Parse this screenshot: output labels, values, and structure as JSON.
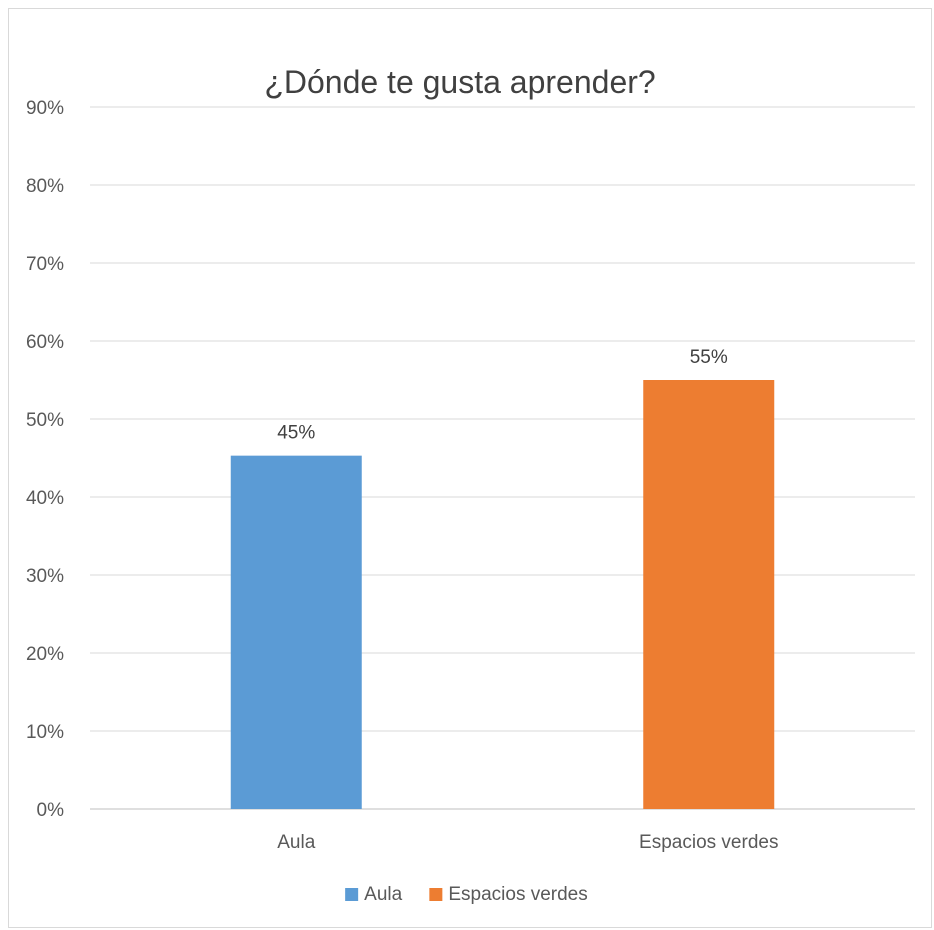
{
  "chart_data": {
    "type": "bar",
    "title": "¿Dónde te gusta aprender?",
    "categories": [
      "Aula",
      "Espacios verdes"
    ],
    "values": [
      45.3,
      55
    ],
    "data_labels": [
      "45%",
      "55%"
    ],
    "colors": [
      "#5b9bd5",
      "#ed7d31"
    ],
    "ylim": [
      0,
      90
    ],
    "y_ticks": [
      0,
      10,
      20,
      30,
      40,
      50,
      60,
      70,
      80,
      90
    ],
    "y_tick_labels": [
      "0%",
      "10%",
      "20%",
      "30%",
      "40%",
      "50%",
      "60%",
      "70%",
      "80%",
      "90%"
    ],
    "grid": true,
    "legend": {
      "position": "bottom",
      "entries": [
        {
          "label": "Aula",
          "color": "#5b9bd5"
        },
        {
          "label": "Espacios verdes",
          "color": "#ed7d31"
        }
      ]
    }
  }
}
